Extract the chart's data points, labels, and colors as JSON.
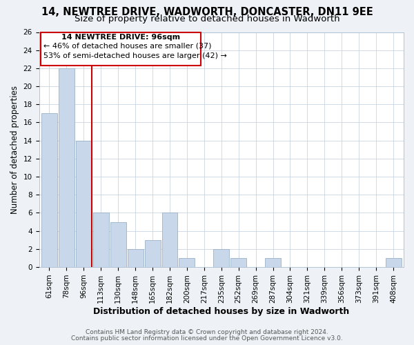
{
  "title": "14, NEWTREE DRIVE, WADWORTH, DONCASTER, DN11 9EE",
  "subtitle": "Size of property relative to detached houses in Wadworth",
  "xlabel": "Distribution of detached houses by size in Wadworth",
  "ylabel": "Number of detached properties",
  "bar_labels": [
    "61sqm",
    "78sqm",
    "96sqm",
    "113sqm",
    "130sqm",
    "148sqm",
    "165sqm",
    "182sqm",
    "200sqm",
    "217sqm",
    "235sqm",
    "252sqm",
    "269sqm",
    "287sqm",
    "304sqm",
    "321sqm",
    "339sqm",
    "356sqm",
    "373sqm",
    "391sqm",
    "408sqm"
  ],
  "bar_values": [
    17,
    22,
    14,
    6,
    5,
    2,
    3,
    6,
    1,
    0,
    2,
    1,
    0,
    1,
    0,
    0,
    0,
    0,
    0,
    0,
    1
  ],
  "highlight_index": 2,
  "bar_color": "#c8d8ea",
  "highlight_line_color": "#cc0000",
  "ylim": [
    0,
    26
  ],
  "yticks": [
    0,
    2,
    4,
    6,
    8,
    10,
    12,
    14,
    16,
    18,
    20,
    22,
    24,
    26
  ],
  "annotation_title": "14 NEWTREE DRIVE: 96sqm",
  "annotation_line1": "← 46% of detached houses are smaller (37)",
  "annotation_line2": "53% of semi-detached houses are larger (42) →",
  "footer_line1": "Contains HM Land Registry data © Crown copyright and database right 2024.",
  "footer_line2": "Contains public sector information licensed under the Open Government Licence v3.0.",
  "background_color": "#eef2f6",
  "plot_background": "#ffffff",
  "grid_color": "#c8d4e0",
  "title_fontsize": 10.5,
  "subtitle_fontsize": 9.5,
  "xlabel_fontsize": 9,
  "ylabel_fontsize": 8.5,
  "tick_fontsize": 7.5,
  "footer_fontsize": 6.5
}
